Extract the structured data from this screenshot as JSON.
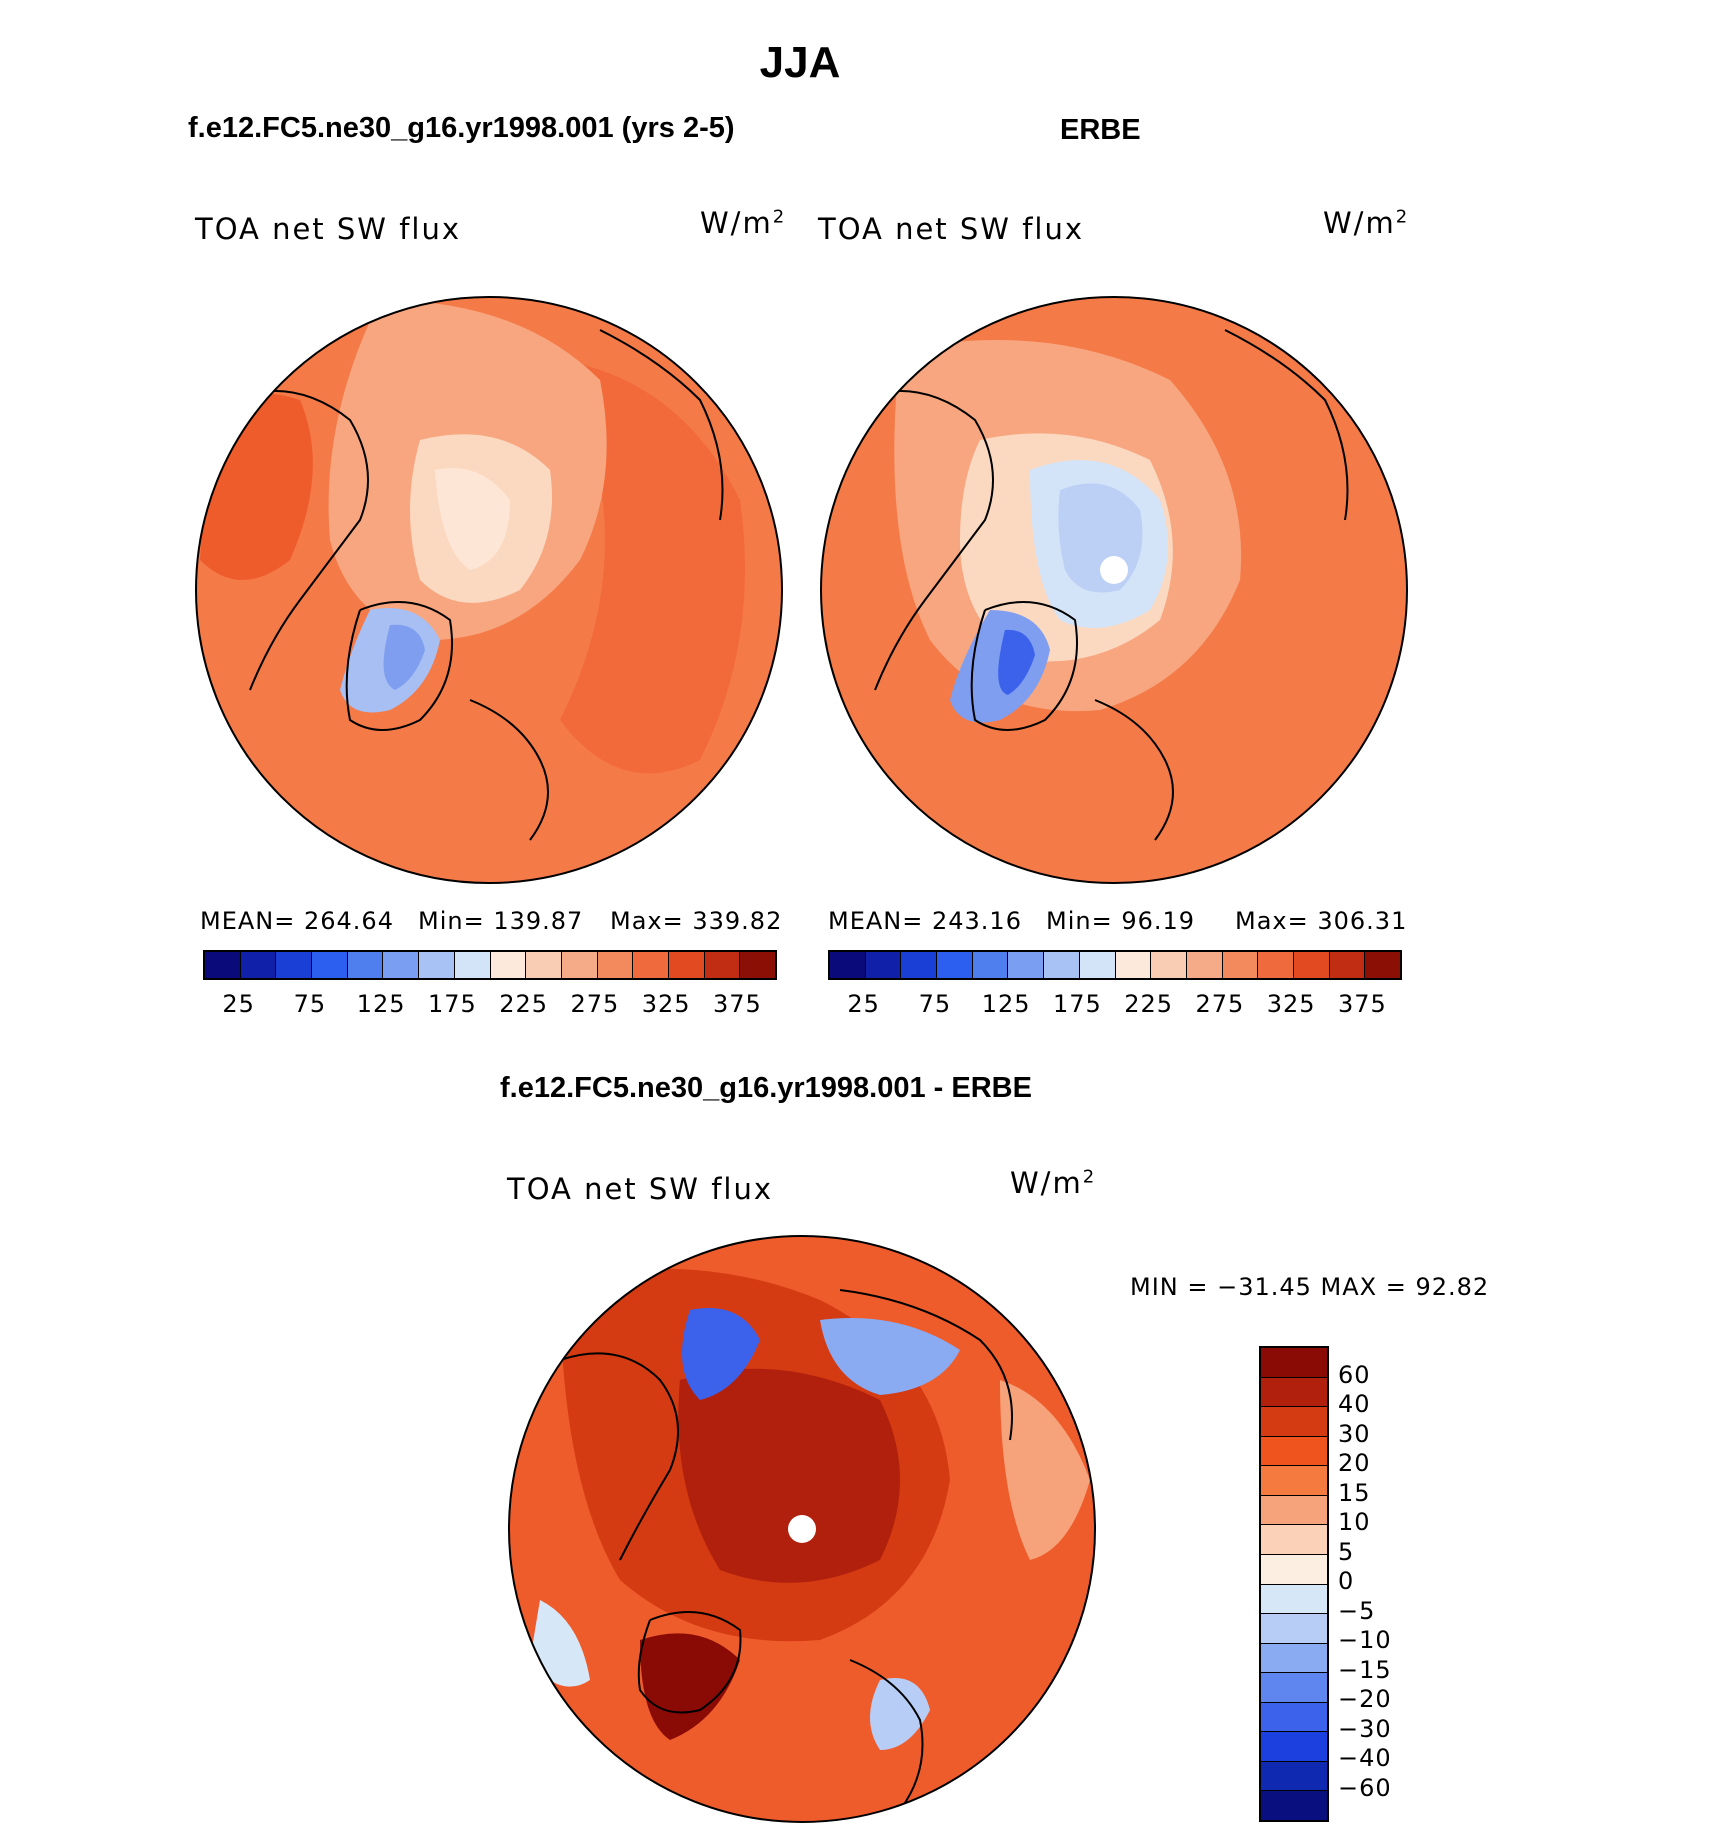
{
  "main_title": "JJA",
  "panels": {
    "model": {
      "title": "f.e12.FC5.ne30_g16.yr1998.001 (yrs 2-5)",
      "field": "TOA net SW flux",
      "units_base": "W/m",
      "units_exp": "2",
      "mean": "MEAN=  264.64",
      "min": "Min=  139.87",
      "max": "Max=  339.82"
    },
    "obs": {
      "title": "ERBE",
      "field": "TOA net SW flux",
      "units_base": "W/m",
      "units_exp": "2",
      "mean": "MEAN=  243.16",
      "min": "Min=    96.19",
      "max": "Max=  306.31"
    },
    "diff": {
      "title": "f.e12.FC5.ne30_g16.yr1998.001 - ERBE",
      "field": "TOA net SW flux",
      "units_base": "W/m",
      "units_exp": "2",
      "minmax": "MIN = −31.45 MAX =   92.82"
    }
  },
  "abs_colorbar": {
    "colors": [
      "#0a0a7a",
      "#1020a8",
      "#1a3fd6",
      "#2c5ff0",
      "#4f7fef",
      "#7a9ff2",
      "#a8c2f5",
      "#d4e4f8",
      "#fde9dc",
      "#f9cdb4",
      "#f6ab88",
      "#f38a5d",
      "#ef6a3c",
      "#e24a22",
      "#c02d12",
      "#8c0f06"
    ],
    "ticks": [
      "25",
      "75",
      "125",
      "175",
      "225",
      "275",
      "325",
      "375"
    ]
  },
  "diff_colorbar": {
    "colors": [
      "#8a0a05",
      "#b0200c",
      "#d53b12",
      "#f0541e",
      "#f47a40",
      "#f6a27a",
      "#fbd2b8",
      "#fdeee2",
      "#d6e7f8",
      "#b8cdf5",
      "#8aaaf2",
      "#5f86ee",
      "#3c62ec",
      "#1c3fe0",
      "#0f2ab0",
      "#0a0f80"
    ],
    "ticks": [
      "60",
      "40",
      "30",
      "20",
      "15",
      "10",
      "5",
      "0",
      "−5",
      "−10",
      "−15",
      "−20",
      "−30",
      "−40",
      "−60"
    ]
  }
}
